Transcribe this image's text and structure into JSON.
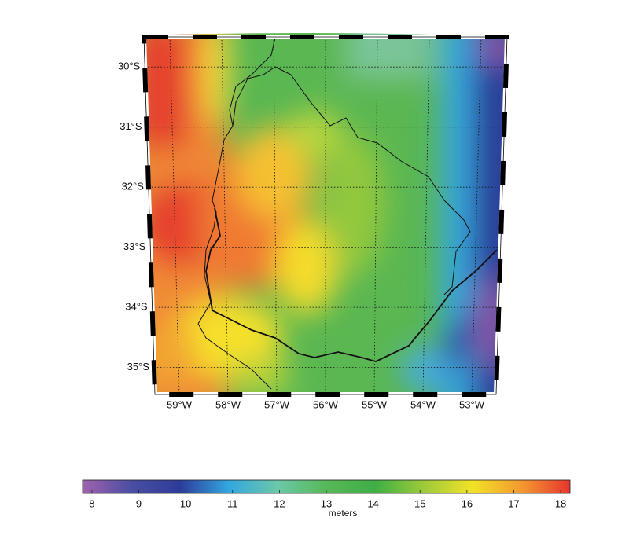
{
  "chart_data": {
    "type": "map",
    "lonlim": [
      -59.5,
      -52.5
    ],
    "latlim": [
      -29.5,
      -35.45
    ],
    "lat_ticks": [
      {
        "value": -30,
        "label": "30°S"
      },
      {
        "value": -31,
        "label": "31°S"
      },
      {
        "value": -32,
        "label": "32°S"
      },
      {
        "value": -33,
        "label": "33°S"
      },
      {
        "value": -34,
        "label": "34°S"
      },
      {
        "value": -35,
        "label": "35°S"
      }
    ],
    "lon_ticks": [
      {
        "value": -59,
        "label": "59°W"
      },
      {
        "value": -58,
        "label": "58°W"
      },
      {
        "value": -57,
        "label": "57°W"
      },
      {
        "value": -56,
        "label": "56°W"
      },
      {
        "value": -55,
        "label": "55°W"
      },
      {
        "value": -54,
        "label": "54°W"
      },
      {
        "value": -53,
        "label": "53°W"
      }
    ],
    "grid": true,
    "colorbar": {
      "label": "meters",
      "clim": [
        7.8,
        18.2
      ],
      "ticks": [
        8,
        9,
        10,
        11,
        12,
        13,
        14,
        15,
        16,
        17,
        18
      ],
      "colormap": [
        "#a062ae",
        "#4a4ea3",
        "#2d3c9a",
        "#33a6e0",
        "#6cc8a8",
        "#58b858",
        "#3fae45",
        "#9ccb3a",
        "#f2e227",
        "#f39a30",
        "#e6352e"
      ]
    }
  }
}
